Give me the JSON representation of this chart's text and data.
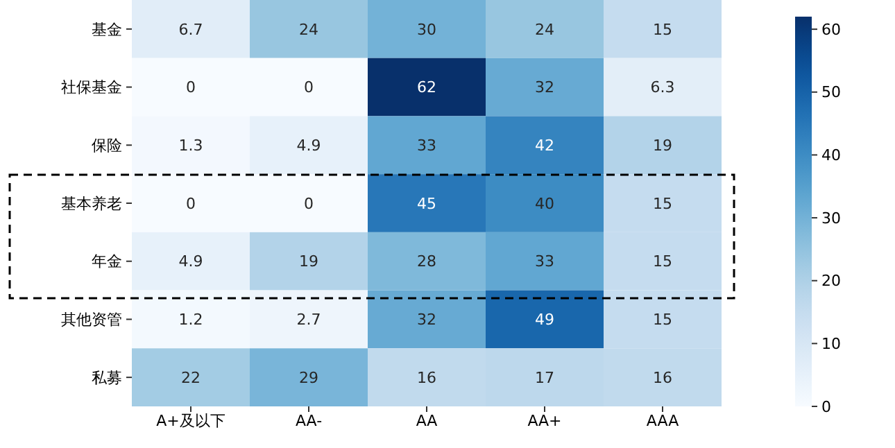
{
  "chart_data": {
    "type": "heatmap",
    "categories": [
      "A+及以下",
      "AA-",
      "AA",
      "AA+",
      "AAA"
    ],
    "y_categories": [
      "基金",
      "社保基金",
      "保险",
      "基本养老",
      "年金",
      "其他资管",
      "私募"
    ],
    "cells": [
      [
        6.7,
        24,
        30,
        24,
        15
      ],
      [
        0,
        0,
        62,
        32,
        6.3
      ],
      [
        1.3,
        4.9,
        33,
        42,
        19
      ],
      [
        0,
        0,
        45,
        40,
        15
      ],
      [
        4.9,
        19,
        28,
        33,
        15
      ],
      [
        1.2,
        2.7,
        32,
        49,
        15
      ],
      [
        22,
        29,
        16,
        17,
        16
      ]
    ],
    "clim": [
      0,
      62
    ],
    "cticks": [
      0,
      10,
      20,
      30,
      40,
      50,
      60
    ],
    "data_labels": true
  }
}
